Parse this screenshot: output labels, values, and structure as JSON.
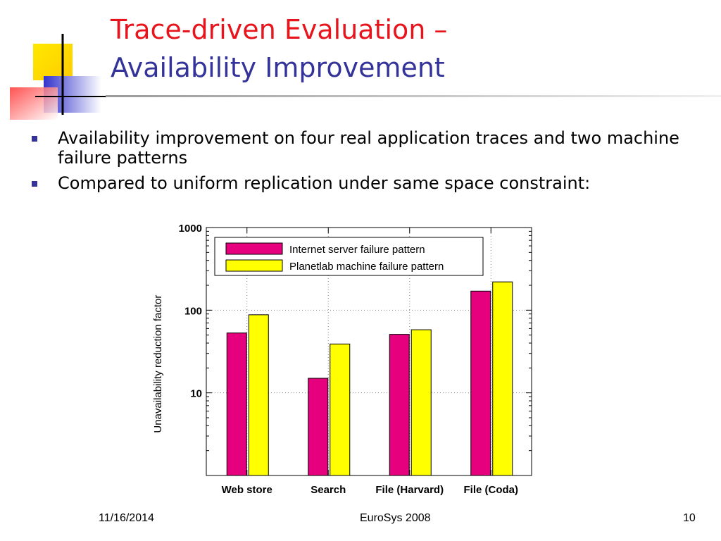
{
  "slide": {
    "title_line1": "Trace-driven Evaluation –",
    "title_line2": "Availability Improvement",
    "bullets": [
      "Availability improvement on four real application traces and two machine failure patterns",
      "Compared to uniform replication under same space constraint:"
    ],
    "footer": {
      "date": "11/16/2014",
      "venue": "EuroSys 2008",
      "page": "10"
    },
    "colors": {
      "title_red": "#e8141c",
      "title_blue": "#333399",
      "bullet": "#333399"
    }
  },
  "chart_data": {
    "type": "bar",
    "ylabel": "Unavailability reduction factor",
    "xlabel": "",
    "yscale": "log",
    "ylim": [
      1,
      1000
    ],
    "yticks": [
      10,
      100,
      1000
    ],
    "ytick_labels": [
      "10",
      "100",
      "1000"
    ],
    "grid": true,
    "legend_position": "top-left",
    "categories": [
      "Web store",
      "Search",
      "File (Harvard)",
      "File (Coda)"
    ],
    "series": [
      {
        "name": "Internet server failure pattern",
        "color": "#e6007e",
        "values": [
          53,
          15,
          51,
          170
        ]
      },
      {
        "name": "Planetlab machine failure pattern",
        "color": "#ffff00",
        "values": [
          88,
          39,
          58,
          220
        ]
      }
    ]
  }
}
